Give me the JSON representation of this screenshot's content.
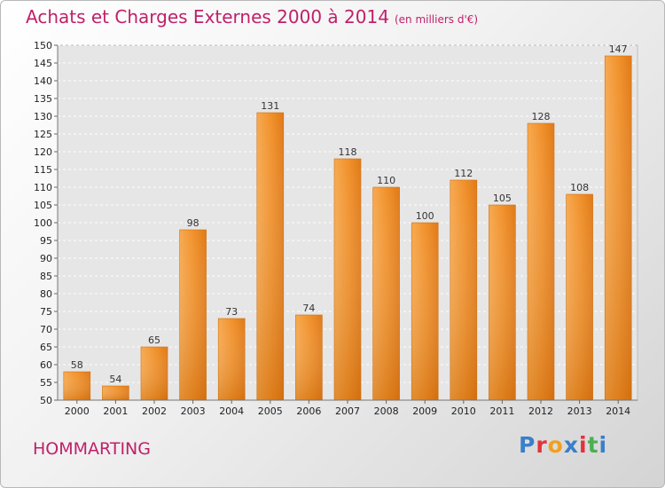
{
  "header": {
    "title": "Achats et Charges Externes 2000 à 2014",
    "subtitle": "(en milliers d'€)"
  },
  "footer": {
    "commune": "HOMMARTING",
    "logo": "Proxiti",
    "logo_colors": [
      "#3a7fc8",
      "#e2333a",
      "#f0a020",
      "#3a7fc8",
      "#e2333a",
      "#4caf50",
      "#3a7fc8"
    ]
  },
  "chart_data": {
    "type": "bar",
    "title": "Achats et Charges Externes 2000 à 2014",
    "subtitle": "(en milliers d'€)",
    "categories": [
      "2000",
      "2001",
      "2002",
      "2003",
      "2004",
      "2005",
      "2006",
      "2007",
      "2008",
      "2009",
      "2010",
      "2011",
      "2012",
      "2013",
      "2014"
    ],
    "values": [
      58,
      54,
      65,
      98,
      73,
      131,
      74,
      118,
      110,
      100,
      112,
      105,
      128,
      108,
      147
    ],
    "ylim": [
      50,
      150
    ],
    "yticks": [
      50,
      55,
      60,
      65,
      70,
      75,
      80,
      85,
      90,
      95,
      100,
      105,
      110,
      115,
      120,
      125,
      130,
      135,
      140,
      145,
      150
    ],
    "grid": true,
    "bar_color": "#f0902a",
    "xlabel": "",
    "ylabel": ""
  }
}
